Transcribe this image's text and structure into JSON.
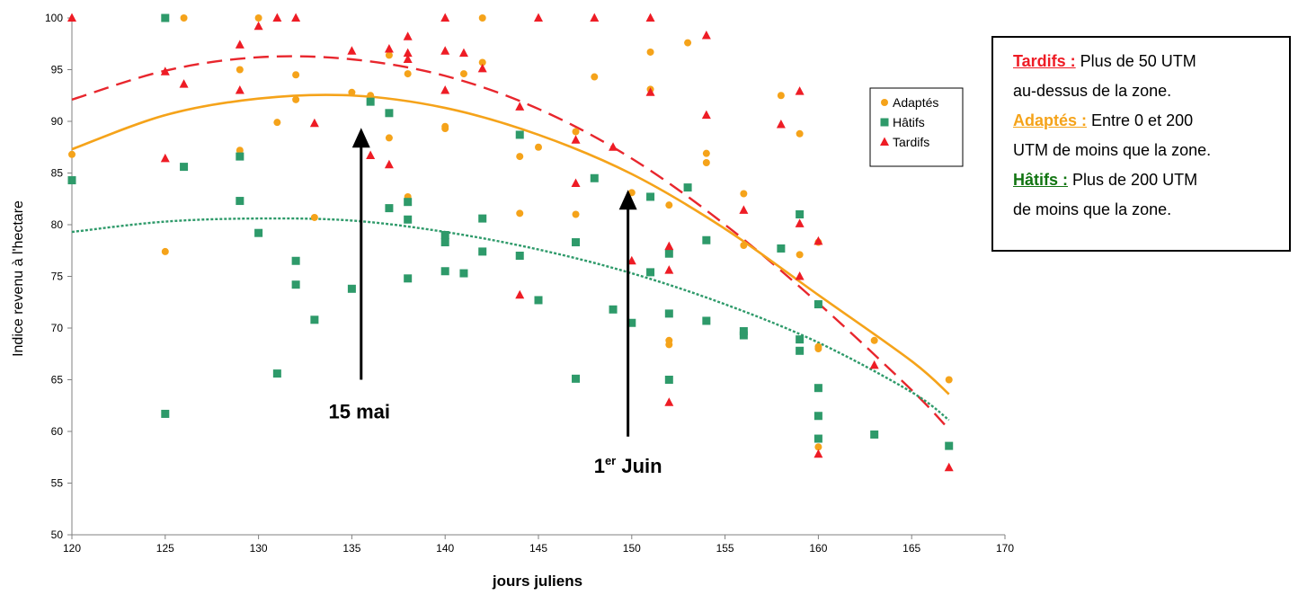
{
  "chart_data": {
    "type": "scatter",
    "title": "",
    "xlabel": "jours juliens",
    "ylabel": "Indice revenu à l'hectare",
    "xlim": [
      120,
      170
    ],
    "ylim": [
      50,
      100
    ],
    "xticks": [
      120,
      125,
      130,
      135,
      140,
      145,
      150,
      155,
      160,
      165,
      170
    ],
    "yticks": [
      50,
      55,
      60,
      65,
      70,
      75,
      80,
      85,
      90,
      95,
      100
    ],
    "grid": false,
    "legend_position": "right",
    "series": [
      {
        "name": "Adaptés",
        "color": "#f5a31a",
        "marker": "circle",
        "points": [
          [
            120,
            86.8
          ],
          [
            125,
            77.4
          ],
          [
            126,
            100
          ],
          [
            129,
            95.0
          ],
          [
            129,
            87.2
          ],
          [
            130,
            100
          ],
          [
            131,
            89.9
          ],
          [
            132,
            94.5
          ],
          [
            132,
            92.1
          ],
          [
            133,
            80.7
          ],
          [
            135,
            92.8
          ],
          [
            136,
            92.5
          ],
          [
            137,
            96.4
          ],
          [
            137,
            88.4
          ],
          [
            138,
            94.6
          ],
          [
            138,
            82.7
          ],
          [
            140,
            89.5
          ],
          [
            140,
            89.3
          ],
          [
            141,
            94.6
          ],
          [
            142,
            100
          ],
          [
            142,
            95.7
          ],
          [
            144,
            86.6
          ],
          [
            144,
            81.1
          ],
          [
            145,
            87.5
          ],
          [
            147,
            89.0
          ],
          [
            147,
            81.0
          ],
          [
            148,
            94.3
          ],
          [
            150,
            83.1
          ],
          [
            151,
            96.7
          ],
          [
            151,
            93.1
          ],
          [
            152,
            81.9
          ],
          [
            152,
            68.8
          ],
          [
            152,
            68.4
          ],
          [
            153,
            97.6
          ],
          [
            154,
            86.9
          ],
          [
            154,
            86.0
          ],
          [
            156,
            83.0
          ],
          [
            156,
            78.0
          ],
          [
            158,
            92.5
          ],
          [
            159,
            88.8
          ],
          [
            159,
            77.1
          ],
          [
            160,
            78.3
          ],
          [
            160,
            68.2
          ],
          [
            160,
            68.0
          ],
          [
            160,
            58.5
          ],
          [
            163,
            68.8
          ],
          [
            167,
            65.0
          ]
        ]
      },
      {
        "name": "Hâtifs",
        "color": "#2e9a6a",
        "marker": "square",
        "points": [
          [
            120,
            84.3
          ],
          [
            125,
            100
          ],
          [
            125,
            61.7
          ],
          [
            126,
            85.6
          ],
          [
            129,
            86.6
          ],
          [
            129,
            82.3
          ],
          [
            130,
            79.2
          ],
          [
            131,
            65.6
          ],
          [
            132,
            76.5
          ],
          [
            132,
            74.2
          ],
          [
            133,
            70.8
          ],
          [
            135,
            73.8
          ],
          [
            136,
            91.9
          ],
          [
            137,
            81.6
          ],
          [
            137,
            90.8
          ],
          [
            138,
            82.2
          ],
          [
            138,
            80.5
          ],
          [
            138,
            74.8
          ],
          [
            140,
            79.0
          ],
          [
            140,
            78.3
          ],
          [
            140,
            75.5
          ],
          [
            141,
            75.3
          ],
          [
            142,
            80.6
          ],
          [
            142,
            77.4
          ],
          [
            144,
            88.7
          ],
          [
            144,
            77.0
          ],
          [
            145,
            72.7
          ],
          [
            147,
            78.3
          ],
          [
            147,
            65.1
          ],
          [
            148,
            84.5
          ],
          [
            149,
            71.8
          ],
          [
            150,
            70.5
          ],
          [
            151,
            82.7
          ],
          [
            151,
            75.4
          ],
          [
            152,
            77.2
          ],
          [
            152,
            71.4
          ],
          [
            152,
            65.0
          ],
          [
            153,
            83.6
          ],
          [
            154,
            78.5
          ],
          [
            154,
            70.7
          ],
          [
            156,
            69.7
          ],
          [
            156,
            69.3
          ],
          [
            158,
            77.7
          ],
          [
            159,
            81.0
          ],
          [
            159,
            68.9
          ],
          [
            159,
            67.8
          ],
          [
            160,
            72.3
          ],
          [
            160,
            64.2
          ],
          [
            160,
            61.5
          ],
          [
            160,
            59.3
          ],
          [
            163,
            59.7
          ],
          [
            167,
            58.6
          ]
        ]
      },
      {
        "name": "Tardifs",
        "color": "#ee1c25",
        "marker": "triangle",
        "points": [
          [
            120,
            100
          ],
          [
            125,
            94.8
          ],
          [
            125,
            86.4
          ],
          [
            126,
            93.6
          ],
          [
            129,
            97.4
          ],
          [
            129,
            93.0
          ],
          [
            130,
            99.2
          ],
          [
            131,
            100
          ],
          [
            132,
            100
          ],
          [
            133,
            89.8
          ],
          [
            135,
            96.8
          ],
          [
            136,
            86.7
          ],
          [
            137,
            97.0
          ],
          [
            137,
            85.8
          ],
          [
            138,
            98.2
          ],
          [
            138,
            96.6
          ],
          [
            138,
            96.0
          ],
          [
            140,
            100
          ],
          [
            140,
            96.8
          ],
          [
            140,
            93.0
          ],
          [
            141,
            96.6
          ],
          [
            142,
            95.1
          ],
          [
            144,
            91.4
          ],
          [
            144,
            73.2
          ],
          [
            145,
            100
          ],
          [
            147,
            88.2
          ],
          [
            147,
            84.0
          ],
          [
            148,
            100
          ],
          [
            149,
            87.5
          ],
          [
            150,
            76.5
          ],
          [
            151,
            100
          ],
          [
            151,
            92.8
          ],
          [
            152,
            77.9
          ],
          [
            152,
            75.6
          ],
          [
            152,
            62.8
          ],
          [
            154,
            98.3
          ],
          [
            154,
            90.6
          ],
          [
            156,
            81.4
          ],
          [
            158,
            89.7
          ],
          [
            159,
            92.9
          ],
          [
            159,
            80.1
          ],
          [
            159,
            75.0
          ],
          [
            160,
            78.4
          ],
          [
            160,
            57.8
          ],
          [
            163,
            66.4
          ],
          [
            167,
            56.5
          ]
        ]
      }
    ],
    "trendlines": [
      {
        "series": "Tardifs",
        "style": "dashed",
        "color": "#e8262d",
        "points": [
          [
            120,
            92.1
          ],
          [
            125,
            94.9
          ],
          [
            130,
            96.2
          ],
          [
            135,
            96.0
          ],
          [
            140,
            94.4
          ],
          [
            145,
            91.2
          ],
          [
            150,
            86.4
          ],
          [
            155,
            80.0
          ],
          [
            160,
            72.4
          ],
          [
            165,
            64.0
          ],
          [
            167,
            60.2
          ]
        ]
      },
      {
        "series": "Adaptés",
        "style": "solid",
        "color": "#f5a31a",
        "points": [
          [
            120,
            87.3
          ],
          [
            125,
            90.6
          ],
          [
            130,
            92.2
          ],
          [
            135,
            92.5
          ],
          [
            140,
            91.3
          ],
          [
            145,
            88.7
          ],
          [
            150,
            84.9
          ],
          [
            155,
            79.6
          ],
          [
            160,
            73.2
          ],
          [
            165,
            66.8
          ],
          [
            167,
            63.6
          ]
        ]
      },
      {
        "series": "Hâtifs",
        "style": "dotted",
        "color": "#2e9a6a",
        "points": [
          [
            120,
            79.3
          ],
          [
            125,
            80.3
          ],
          [
            130,
            80.6
          ],
          [
            135,
            80.4
          ],
          [
            140,
            79.3
          ],
          [
            145,
            77.6
          ],
          [
            150,
            75.3
          ],
          [
            155,
            72.3
          ],
          [
            160,
            68.6
          ],
          [
            165,
            63.8
          ],
          [
            167,
            61.1
          ]
        ]
      }
    ],
    "annotations": [
      {
        "text": "15 mai",
        "x": 135.5,
        "y_from": 65.0,
        "y_to": 89.2
      },
      {
        "text_main": "1",
        "text_sup": "er",
        "text_tail": " Juin",
        "x": 149.8,
        "y_from": 59.5,
        "y_to": 83.2
      }
    ]
  },
  "info_box": {
    "lines": [
      {
        "label": "Tardifs :",
        "color": "#ee1c25",
        "text": " Plus de 50 UTM"
      },
      {
        "label": "",
        "color": "",
        "text": "au-dessus de la zone."
      },
      {
        "label": "Adaptés :",
        "color": "#f5a31a",
        "text": " Entre 0 et 200"
      },
      {
        "label": "",
        "color": "",
        "text": "UTM de moins que la zone."
      },
      {
        "label": "Hâtifs :",
        "color": "#127512",
        "text": " Plus de 200 UTM"
      },
      {
        "label": "",
        "color": "",
        "text": "de moins que la zone."
      }
    ]
  }
}
